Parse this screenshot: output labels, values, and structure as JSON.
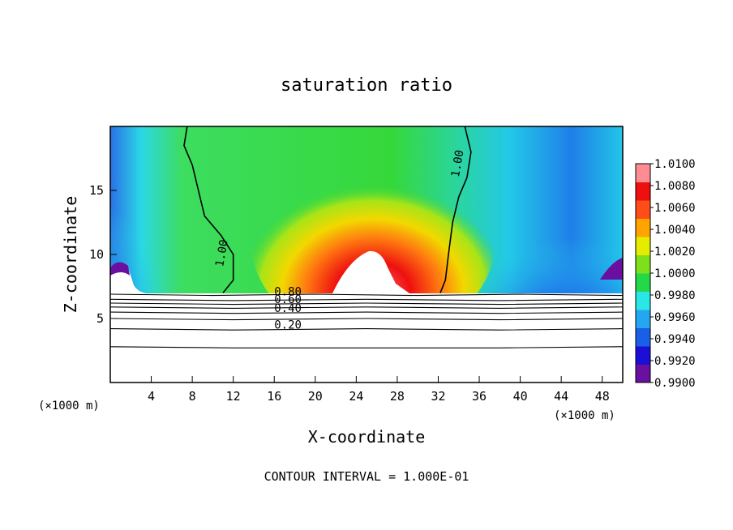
{
  "chart_data": {
    "type": "heatmap",
    "title": "saturation ratio",
    "xlabel": "X-coordinate",
    "ylabel": "Z-coordinate",
    "x_unit": "(×1000 m)",
    "z_unit": "(×1000 m)",
    "xlim": [
      0,
      50
    ],
    "ylim": [
      0,
      20
    ],
    "x_ticks": [
      4,
      8,
      12,
      16,
      20,
      24,
      28,
      32,
      36,
      40,
      44,
      48
    ],
    "y_ticks": [
      5,
      10,
      15
    ],
    "footer": "CONTOUR INTERVAL = 1.000E-01",
    "colorbar": {
      "min": 0.99,
      "max": 1.01,
      "labels": [
        "1.0100",
        "1.0080",
        "1.0060",
        "1.0040",
        "1.0020",
        "1.0000",
        "0.9980",
        "0.9960",
        "0.9940",
        "0.9920",
        "0.9900"
      ],
      "colors": [
        "#6a0fa0",
        "#1b0fd6",
        "#1a5fe8",
        "#23a8f0",
        "#2ae6e6",
        "#25d84a",
        "#7ee01c",
        "#e6ec00",
        "#ffa400",
        "#ff4d1a",
        "#ee0f0f",
        "#ff8c94"
      ]
    },
    "surface_height": 7,
    "contour_labels": [
      {
        "text": "1.00",
        "x": 11,
        "y": 9
      },
      {
        "text": "1.00",
        "x": 34,
        "y": 16
      },
      {
        "text": "0.80",
        "x": 16,
        "y": 6.8
      },
      {
        "text": "0.60",
        "x": 16,
        "y": 6.2
      },
      {
        "text": "0.40",
        "x": 16,
        "y": 5.5
      },
      {
        "text": "0.20",
        "x": 16,
        "y": 4.2
      }
    ],
    "contour_lines": [
      {
        "level": 1.0,
        "points": [
          [
            7.5,
            20
          ],
          [
            7.2,
            18.5
          ],
          [
            8,
            17
          ],
          [
            8.6,
            15
          ],
          [
            9.2,
            13
          ],
          [
            10.8,
            11.5
          ],
          [
            12,
            10
          ],
          [
            12,
            8
          ],
          [
            11,
            7
          ]
        ]
      },
      {
        "level": 1.0,
        "points": [
          [
            34.6,
            20
          ],
          [
            35.2,
            18
          ],
          [
            34.8,
            16
          ],
          [
            34,
            14.5
          ],
          [
            33.4,
            12.5
          ],
          [
            33,
            10
          ],
          [
            32.7,
            8
          ],
          [
            32.2,
            7
          ]
        ]
      },
      {
        "level": 0.8,
        "points": [
          [
            0,
            6.9
          ],
          [
            10,
            6.8
          ],
          [
            20,
            6.9
          ],
          [
            30,
            6.8
          ],
          [
            40,
            6.9
          ],
          [
            50,
            6.8
          ]
        ]
      },
      {
        "level": 0.7,
        "points": [
          [
            0,
            6.5
          ],
          [
            12,
            6.4
          ],
          [
            25,
            6.5
          ],
          [
            38,
            6.4
          ],
          [
            50,
            6.5
          ]
        ]
      },
      {
        "level": 0.6,
        "points": [
          [
            0,
            6.2
          ],
          [
            12,
            6.1
          ],
          [
            25,
            6.2
          ],
          [
            38,
            6.1
          ],
          [
            50,
            6.2
          ]
        ]
      },
      {
        "level": 0.5,
        "points": [
          [
            0,
            5.9
          ],
          [
            12,
            5.8
          ],
          [
            25,
            5.9
          ],
          [
            38,
            5.8
          ],
          [
            50,
            5.9
          ]
        ]
      },
      {
        "level": 0.4,
        "points": [
          [
            0,
            5.5
          ],
          [
            12,
            5.4
          ],
          [
            25,
            5.5
          ],
          [
            38,
            5.4
          ],
          [
            50,
            5.5
          ]
        ]
      },
      {
        "level": 0.3,
        "points": [
          [
            0,
            5.0
          ],
          [
            12,
            4.9
          ],
          [
            25,
            5.0
          ],
          [
            38,
            4.9
          ],
          [
            50,
            5.0
          ]
        ]
      },
      {
        "level": 0.2,
        "points": [
          [
            0,
            4.2
          ],
          [
            12,
            4.1
          ],
          [
            25,
            4.2
          ],
          [
            38,
            4.1
          ],
          [
            50,
            4.2
          ]
        ]
      },
      {
        "level": 0.1,
        "points": [
          [
            0,
            2.8
          ],
          [
            12,
            2.7
          ],
          [
            25,
            2.7
          ],
          [
            38,
            2.7
          ],
          [
            50,
            2.8
          ]
        ]
      }
    ]
  }
}
